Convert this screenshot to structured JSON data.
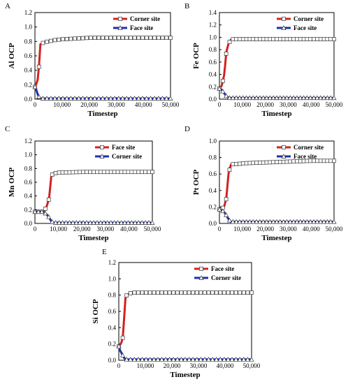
{
  "colors": {
    "series1": "#d42020",
    "series2": "#1f2fb0",
    "marker_face": "#ffffff",
    "marker_edge": "#333333",
    "axis": "#000000"
  },
  "chart_data": [
    {
      "panel": "A",
      "type": "line",
      "ylabel": "Al OCP",
      "xlabel": "Timestep",
      "xlim": [
        0,
        50000
      ],
      "ylim": [
        0,
        1.2
      ],
      "yticks": [
        "0.0",
        "0.2",
        "0.4",
        "0.6",
        "0.8",
        "1.0",
        "1.2"
      ],
      "xticks": [
        "0",
        "10,000",
        "20,000",
        "30,000",
        "40,000",
        "50,000"
      ],
      "legend": [
        "Corner site",
        "Face site"
      ],
      "series": [
        {
          "name": "Corner site",
          "x": [
            0,
            500,
            1000,
            1500,
            2000,
            3500,
            5000,
            7500,
            10000,
            15000,
            20000,
            25000,
            30000,
            40000,
            50000
          ],
          "values": [
            0.17,
            0.21,
            0.27,
            0.46,
            0.76,
            0.79,
            0.8,
            0.82,
            0.83,
            0.84,
            0.85,
            0.85,
            0.85,
            0.85,
            0.85
          ]
        },
        {
          "name": "Face site",
          "x": [
            0,
            500,
            1000,
            1500,
            2000,
            3000,
            5000,
            10000,
            20000,
            30000,
            40000,
            50000
          ],
          "values": [
            0.17,
            0.13,
            0.07,
            0.03,
            0.01,
            0.01,
            0.01,
            0.01,
            0.01,
            0.01,
            0.01,
            0.01
          ]
        }
      ]
    },
    {
      "panel": "B",
      "type": "line",
      "ylabel": "Fe OCP",
      "xlabel": "Timestep",
      "xlim": [
        0,
        50000
      ],
      "ylim": [
        0,
        1.4
      ],
      "yticks": [
        "0.0",
        "0.2",
        "0.4",
        "0.6",
        "0.8",
        "1.0",
        "1.2",
        "1.4"
      ],
      "xticks": [
        "0",
        "10,000",
        "20,000",
        "30,000",
        "40,000",
        "50,000"
      ],
      "legend": [
        "Corner site",
        "Face site"
      ],
      "series": [
        {
          "name": "Corner site",
          "x": [
            0,
            1000,
            2000,
            2500,
            3000,
            4000,
            5000,
            6000,
            8000,
            10000,
            20000,
            30000,
            40000,
            50000
          ],
          "values": [
            0.17,
            0.22,
            0.38,
            0.55,
            0.76,
            0.9,
            0.96,
            0.97,
            0.97,
            0.97,
            0.97,
            0.97,
            0.97,
            0.97
          ]
        },
        {
          "name": "Face site",
          "x": [
            0,
            1000,
            2000,
            3000,
            4000,
            5000,
            10000,
            20000,
            30000,
            40000,
            50000
          ],
          "values": [
            0.17,
            0.15,
            0.1,
            0.05,
            0.02,
            0.02,
            0.02,
            0.02,
            0.02,
            0.02,
            0.02
          ]
        }
      ]
    },
    {
      "panel": "C",
      "type": "line",
      "ylabel": "Mn OCP",
      "xlabel": "Timestep",
      "xlim": [
        0,
        50000
      ],
      "ylim": [
        0,
        1.2
      ],
      "yticks": [
        "0.0",
        "0.2",
        "0.4",
        "0.6",
        "0.8",
        "1.0",
        "1.2"
      ],
      "xticks": [
        "0",
        "10,000",
        "20,000",
        "30,000",
        "40,000",
        "50,000"
      ],
      "legend": [
        "Face site",
        "Corner site"
      ],
      "series": [
        {
          "name": "Face site",
          "x": [
            0,
            1000,
            2000,
            3000,
            4000,
            5000,
            6000,
            7000,
            8000,
            10000,
            20000,
            30000,
            40000,
            50000
          ],
          "values": [
            0.17,
            0.17,
            0.17,
            0.17,
            0.19,
            0.25,
            0.36,
            0.7,
            0.73,
            0.74,
            0.75,
            0.75,
            0.75,
            0.75
          ]
        },
        {
          "name": "Corner site",
          "x": [
            0,
            1000,
            2000,
            3000,
            4000,
            5000,
            6000,
            7000,
            8000,
            10000,
            20000,
            30000,
            40000,
            50000
          ],
          "values": [
            0.17,
            0.17,
            0.17,
            0.17,
            0.16,
            0.13,
            0.09,
            0.03,
            0.01,
            0.01,
            0.01,
            0.01,
            0.01,
            0.01
          ]
        }
      ]
    },
    {
      "panel": "D",
      "type": "line",
      "ylabel": "Pt OCP",
      "xlabel": "Timestep",
      "xlim": [
        0,
        50000
      ],
      "ylim": [
        0,
        1.0
      ],
      "yticks": [
        "0.0",
        "0.2",
        "0.4",
        "0.6",
        "0.8",
        "1.0"
      ],
      "xticks": [
        "0",
        "10,000",
        "20,000",
        "30,000",
        "40,000",
        "50,000"
      ],
      "legend": [
        "Corner site",
        "Face site"
      ],
      "series": [
        {
          "name": "Corner site",
          "x": [
            0,
            1000,
            2000,
            3000,
            4000,
            5000,
            6000,
            8000,
            10000,
            20000,
            30000,
            40000,
            50000
          ],
          "values": [
            0.17,
            0.18,
            0.2,
            0.3,
            0.61,
            0.71,
            0.72,
            0.72,
            0.73,
            0.74,
            0.75,
            0.76,
            0.76
          ]
        },
        {
          "name": "Face site",
          "x": [
            0,
            1000,
            2000,
            3000,
            4000,
            5000,
            6000,
            8000,
            10000,
            20000,
            30000,
            40000,
            50000
          ],
          "values": [
            0.17,
            0.16,
            0.14,
            0.1,
            0.05,
            0.02,
            0.02,
            0.02,
            0.02,
            0.02,
            0.02,
            0.02,
            0.02
          ]
        }
      ]
    },
    {
      "panel": "E",
      "type": "line",
      "ylabel": "Si OCP",
      "xlabel": "Timestep",
      "xlim": [
        0,
        50000
      ],
      "ylim": [
        0,
        1.2
      ],
      "yticks": [
        "0.0",
        "0.2",
        "0.4",
        "0.6",
        "0.8",
        "1.0",
        "1.2"
      ],
      "xticks": [
        "0",
        "10,000",
        "20,000",
        "30,000",
        "40,000",
        "50,000"
      ],
      "legend": [
        "Face site",
        "Corner site"
      ],
      "series": [
        {
          "name": "Face site",
          "x": [
            0,
            500,
            1000,
            1500,
            2000,
            2500,
            3000,
            3500,
            4000,
            5000,
            10000,
            20000,
            30000,
            40000,
            50000
          ],
          "values": [
            0.17,
            0.19,
            0.22,
            0.28,
            0.51,
            0.76,
            0.8,
            0.81,
            0.82,
            0.83,
            0.83,
            0.83,
            0.83,
            0.83,
            0.83
          ]
        },
        {
          "name": "Corner site",
          "x": [
            0,
            500,
            1000,
            1500,
            2000,
            2500,
            3000,
            4000,
            5000,
            10000,
            20000,
            30000,
            40000,
            50000
          ],
          "values": [
            0.17,
            0.12,
            0.09,
            0.06,
            0.03,
            0.01,
            0.01,
            0.01,
            0.01,
            0.01,
            0.01,
            0.01,
            0.01,
            0.01
          ]
        }
      ]
    }
  ]
}
